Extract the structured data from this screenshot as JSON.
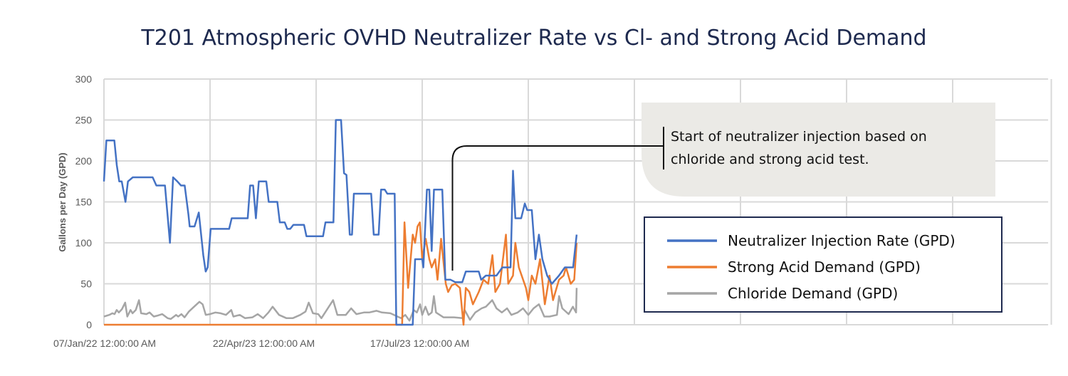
{
  "chart_data": {
    "type": "line",
    "title": "T201 Atmospheric OVHD Neutralizer Rate vs Cl- and Strong Acid Demand",
    "xlabel": "",
    "ylabel": "Gallons per Day (GPD)",
    "ylim": [
      0,
      300
    ],
    "yticks": [
      0,
      50,
      100,
      150,
      200,
      250,
      300
    ],
    "xlim": [
      0,
      8.9
    ],
    "x_note": "x in gridline-interval units from first date label",
    "xtick_labels": [
      {
        "label": "07/Jan/22 12:00:00 AM",
        "x": 0
      },
      {
        "label": "22/Apr/23 12:00:00 AM",
        "x": 1.5
      },
      {
        "label": "17/Jul/23 12:00:00 AM",
        "x": 2.97
      }
    ],
    "x_gridlines": [
      0,
      1,
      2,
      3,
      4,
      5,
      6,
      7,
      8,
      8.93
    ],
    "grid": true,
    "annotation": {
      "text_lines": [
        "Start of neutralizer injection based on",
        "chloride and strong acid test."
      ],
      "points_to": {
        "x": 3.29,
        "y": 66
      }
    },
    "legend": {
      "placement": "right"
    },
    "series": [
      {
        "name": "Neutralizer Injection Rate (GPD)",
        "color": "#4472c4",
        "points": [
          [
            0,
            175
          ],
          [
            0.023,
            225
          ],
          [
            0.098,
            225
          ],
          [
            0.121,
            195
          ],
          [
            0.144,
            175
          ],
          [
            0.168,
            175
          ],
          [
            0.203,
            150
          ],
          [
            0.226,
            175
          ],
          [
            0.272,
            180
          ],
          [
            0.459,
            180
          ],
          [
            0.494,
            170
          ],
          [
            0.575,
            170
          ],
          [
            0.622,
            100
          ],
          [
            0.652,
            180
          ],
          [
            0.692,
            175
          ],
          [
            0.726,
            170
          ],
          [
            0.761,
            170
          ],
          [
            0.796,
            135
          ],
          [
            0.808,
            120
          ],
          [
            0.854,
            120
          ],
          [
            0.894,
            137
          ],
          [
            0.936,
            85
          ],
          [
            0.959,
            65
          ],
          [
            0.978,
            70
          ],
          [
            1.006,
            117
          ],
          [
            1.18,
            117
          ],
          [
            1.204,
            130
          ],
          [
            1.355,
            130
          ],
          [
            1.378,
            170
          ],
          [
            1.406,
            170
          ],
          [
            1.432,
            130
          ],
          [
            1.46,
            175
          ],
          [
            1.53,
            175
          ],
          [
            1.553,
            150
          ],
          [
            1.634,
            150
          ],
          [
            1.658,
            125
          ],
          [
            1.704,
            125
          ],
          [
            1.728,
            117
          ],
          [
            1.756,
            117
          ],
          [
            1.786,
            122
          ],
          [
            1.886,
            122
          ],
          [
            1.909,
            108
          ],
          [
            2.065,
            108
          ],
          [
            2.088,
            125
          ],
          [
            2.163,
            125
          ],
          [
            2.186,
            250
          ],
          [
            2.235,
            250
          ],
          [
            2.263,
            185
          ],
          [
            2.286,
            183
          ],
          [
            2.317,
            110
          ],
          [
            2.338,
            110
          ],
          [
            2.356,
            160
          ],
          [
            2.519,
            160
          ],
          [
            2.543,
            110
          ],
          [
            2.589,
            110
          ],
          [
            2.612,
            165
          ],
          [
            2.647,
            165
          ],
          [
            2.671,
            160
          ],
          [
            2.74,
            160
          ],
          [
            2.756,
            0
          ],
          [
            2.911,
            0
          ],
          [
            2.933,
            80
          ],
          [
            3.0,
            80
          ],
          [
            3.011,
            70
          ],
          [
            3.044,
            165
          ],
          [
            3.067,
            165
          ],
          [
            3.089,
            90
          ],
          [
            3.111,
            165
          ],
          [
            3.189,
            165
          ],
          [
            3.218,
            55
          ],
          [
            3.267,
            55
          ],
          [
            3.311,
            52
          ],
          [
            3.378,
            52
          ],
          [
            3.411,
            65
          ],
          [
            3.533,
            65
          ],
          [
            3.556,
            55
          ],
          [
            3.6,
            60
          ],
          [
            3.7,
            60
          ],
          [
            3.756,
            70
          ],
          [
            3.833,
            70
          ],
          [
            3.856,
            188
          ],
          [
            3.878,
            130
          ],
          [
            3.933,
            130
          ],
          [
            3.967,
            148
          ],
          [
            3.989,
            140
          ],
          [
            4.033,
            140
          ],
          [
            4.067,
            80
          ],
          [
            4.1,
            110
          ],
          [
            4.133,
            80
          ],
          [
            4.178,
            60
          ],
          [
            4.222,
            50
          ],
          [
            4.289,
            60
          ],
          [
            4.344,
            70
          ],
          [
            4.422,
            70
          ],
          [
            4.456,
            110
          ]
        ]
      },
      {
        "name": "Strong Acid Demand (GPD)",
        "color": "#ed7d31",
        "points": [
          [
            0,
            0
          ],
          [
            2.811,
            0
          ],
          [
            2.833,
            125
          ],
          [
            2.867,
            45
          ],
          [
            2.911,
            110
          ],
          [
            2.933,
            100
          ],
          [
            2.956,
            120
          ],
          [
            2.978,
            125
          ],
          [
            3.0,
            80
          ],
          [
            3.033,
            105
          ],
          [
            3.067,
            80
          ],
          [
            3.089,
            70
          ],
          [
            3.122,
            80
          ],
          [
            3.144,
            55
          ],
          [
            3.178,
            105
          ],
          [
            3.222,
            50
          ],
          [
            3.244,
            40
          ],
          [
            3.278,
            48
          ],
          [
            3.311,
            50
          ],
          [
            3.356,
            45
          ],
          [
            3.389,
            0
          ],
          [
            3.411,
            45
          ],
          [
            3.444,
            40
          ],
          [
            3.478,
            25
          ],
          [
            3.533,
            40
          ],
          [
            3.578,
            55
          ],
          [
            3.622,
            50
          ],
          [
            3.662,
            85
          ],
          [
            3.689,
            40
          ],
          [
            3.733,
            50
          ],
          [
            3.789,
            110
          ],
          [
            3.811,
            50
          ],
          [
            3.856,
            60
          ],
          [
            3.878,
            100
          ],
          [
            3.911,
            70
          ],
          [
            3.978,
            45
          ],
          [
            4.0,
            30
          ],
          [
            4.033,
            60
          ],
          [
            4.067,
            50
          ],
          [
            4.111,
            80
          ],
          [
            4.156,
            25
          ],
          [
            4.2,
            60
          ],
          [
            4.233,
            30
          ],
          [
            4.289,
            55
          ],
          [
            4.333,
            60
          ],
          [
            4.356,
            70
          ],
          [
            4.4,
            50
          ],
          [
            4.433,
            55
          ],
          [
            4.456,
            100
          ]
        ]
      },
      {
        "name": "Chloride Demand (GPD)",
        "color": "#a5a5a5",
        "points": [
          [
            0,
            10
          ],
          [
            0.05,
            12
          ],
          [
            0.08,
            14
          ],
          [
            0.1,
            13
          ],
          [
            0.12,
            18
          ],
          [
            0.14,
            15
          ],
          [
            0.17,
            19
          ],
          [
            0.2,
            27
          ],
          [
            0.22,
            10
          ],
          [
            0.25,
            18
          ],
          [
            0.27,
            14
          ],
          [
            0.3,
            18
          ],
          [
            0.33,
            30
          ],
          [
            0.35,
            14
          ],
          [
            0.4,
            13
          ],
          [
            0.43,
            15
          ],
          [
            0.47,
            10
          ],
          [
            0.5,
            11
          ],
          [
            0.55,
            13
          ],
          [
            0.6,
            8
          ],
          [
            0.63,
            7
          ],
          [
            0.68,
            12
          ],
          [
            0.7,
            10
          ],
          [
            0.73,
            13
          ],
          [
            0.76,
            9
          ],
          [
            0.8,
            16
          ],
          [
            0.85,
            22
          ],
          [
            0.9,
            28
          ],
          [
            0.93,
            25
          ],
          [
            0.96,
            12
          ],
          [
            1.0,
            13
          ],
          [
            1.05,
            15
          ],
          [
            1.1,
            14
          ],
          [
            1.15,
            12
          ],
          [
            1.2,
            18
          ],
          [
            1.22,
            10
          ],
          [
            1.28,
            12
          ],
          [
            1.33,
            8
          ],
          [
            1.4,
            9
          ],
          [
            1.45,
            13
          ],
          [
            1.5,
            8
          ],
          [
            1.55,
            15
          ],
          [
            1.59,
            22
          ],
          [
            1.65,
            12
          ],
          [
            1.72,
            8
          ],
          [
            1.78,
            8
          ],
          [
            1.85,
            12
          ],
          [
            1.9,
            16
          ],
          [
            1.93,
            27
          ],
          [
            1.97,
            14
          ],
          [
            2.02,
            13
          ],
          [
            2.05,
            8
          ],
          [
            2.1,
            18
          ],
          [
            2.16,
            30
          ],
          [
            2.2,
            12
          ],
          [
            2.28,
            12
          ],
          [
            2.33,
            20
          ],
          [
            2.38,
            13
          ],
          [
            2.45,
            15
          ],
          [
            2.5,
            15
          ],
          [
            2.57,
            17
          ],
          [
            2.62,
            15
          ],
          [
            2.7,
            14
          ],
          [
            2.75,
            11
          ],
          [
            2.8,
            8
          ],
          [
            2.84,
            12
          ],
          [
            2.88,
            5
          ],
          [
            2.92,
            18
          ],
          [
            2.95,
            15
          ],
          [
            2.98,
            25
          ],
          [
            3.0,
            12
          ],
          [
            3.03,
            22
          ],
          [
            3.06,
            12
          ],
          [
            3.09,
            15
          ],
          [
            3.11,
            35
          ],
          [
            3.13,
            15
          ],
          [
            3.2,
            9
          ],
          [
            3.3,
            9
          ],
          [
            3.38,
            8
          ],
          [
            3.4,
            18
          ],
          [
            3.45,
            6
          ],
          [
            3.5,
            15
          ],
          [
            3.56,
            20
          ],
          [
            3.6,
            22
          ],
          [
            3.66,
            30
          ],
          [
            3.7,
            20
          ],
          [
            3.75,
            15
          ],
          [
            3.8,
            20
          ],
          [
            3.84,
            12
          ],
          [
            3.9,
            15
          ],
          [
            3.95,
            20
          ],
          [
            4.0,
            12
          ],
          [
            4.05,
            20
          ],
          [
            4.1,
            25
          ],
          [
            4.15,
            10
          ],
          [
            4.2,
            10
          ],
          [
            4.27,
            12
          ],
          [
            4.29,
            35
          ],
          [
            4.32,
            20
          ],
          [
            4.38,
            13
          ],
          [
            4.42,
            22
          ],
          [
            4.45,
            15
          ],
          [
            4.456,
            45
          ]
        ]
      }
    ]
  }
}
